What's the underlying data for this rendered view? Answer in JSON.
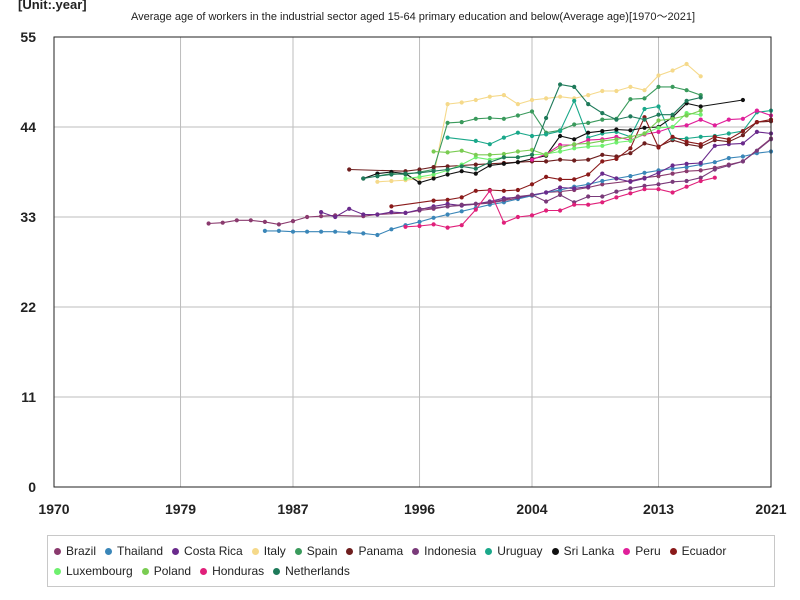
{
  "unit_label": "[Unit:.year]",
  "chart_data": {
    "type": "line",
    "title": "Average age of workers in the industrial sector aged 15-64 primary education and below(Average age)[1970～2021]",
    "xlabel": "",
    "ylabel": "",
    "xlim": [
      1970,
      2021
    ],
    "ylim": [
      0,
      55
    ],
    "x_ticks": [
      "1970",
      "1979",
      "1987",
      "1996",
      "2004",
      "2013",
      "2021"
    ],
    "y_ticks": [
      "0",
      "11",
      "22",
      "33",
      "44",
      "55"
    ],
    "grid": true,
    "legend_position": "bottom",
    "series": [
      {
        "name": "Brazil",
        "color": "#8a3a6e",
        "x": [
          1981,
          1982,
          1983,
          1984,
          1985,
          1986,
          1987,
          1988,
          1989,
          1990,
          1992,
          1993,
          1995,
          1996,
          1997,
          1998,
          1999,
          2001,
          2002,
          2003,
          2004,
          2005,
          2006,
          2007,
          2008,
          2009,
          2011,
          2012,
          2013,
          2014,
          2015,
          2016,
          2017,
          2018,
          2019,
          2021
        ],
        "y": [
          32.2,
          32.3,
          32.6,
          32.6,
          32.4,
          32.1,
          32.5,
          33.0,
          33.1,
          33.2,
          33.1,
          33.3,
          33.5,
          33.8,
          34.0,
          34.3,
          34.4,
          34.7,
          35.0,
          35.3,
          35.6,
          36.0,
          36.1,
          36.3,
          36.6,
          37.0,
          37.4,
          37.8,
          38.0,
          38.3,
          38.6,
          38.7,
          39.0,
          39.4,
          39.8,
          42.6
        ]
      },
      {
        "name": "Thailand",
        "color": "#3a86b8",
        "x": [
          1985,
          1986,
          1987,
          1988,
          1989,
          1990,
          1991,
          1992,
          1993,
          1994,
          1995,
          1996,
          1997,
          1998,
          1999,
          2000,
          2001,
          2002,
          2003,
          2004,
          2005,
          2006,
          2007,
          2008,
          2009,
          2010,
          2011,
          2012,
          2013,
          2014,
          2015,
          2016,
          2017,
          2018,
          2019,
          2020,
          2021
        ],
        "y": [
          31.3,
          31.3,
          31.2,
          31.2,
          31.2,
          31.2,
          31.1,
          31.0,
          30.8,
          31.5,
          32.0,
          32.4,
          32.9,
          33.3,
          33.7,
          34.1,
          34.5,
          34.8,
          35.2,
          35.6,
          36.0,
          36.3,
          36.7,
          37.0,
          37.4,
          37.7,
          38.0,
          38.4,
          38.7,
          38.9,
          39.1,
          39.4,
          39.7,
          40.2,
          40.4,
          40.8,
          41.0
        ]
      },
      {
        "name": "Costa Rica",
        "color": "#6a2a8c",
        "x": [
          1989,
          1990,
          1991,
          1992,
          1993,
          1994,
          1995,
          1996,
          1997,
          1998,
          1999,
          2000,
          2001,
          2002,
          2003,
          2004,
          2005,
          2006,
          2007,
          2008,
          2009,
          2010,
          2011,
          2012,
          2013,
          2014,
          2015,
          2016,
          2017,
          2018,
          2019,
          2020,
          2021
        ],
        "y": [
          33.6,
          33.0,
          34.0,
          33.3,
          33.3,
          33.6,
          33.5,
          33.9,
          34.3,
          34.6,
          34.4,
          34.6,
          34.9,
          35.3,
          35.4,
          35.7,
          36.0,
          36.6,
          36.5,
          36.7,
          38.3,
          37.7,
          37.3,
          37.7,
          38.4,
          39.3,
          39.5,
          39.6,
          41.7,
          41.9,
          42.0,
          43.4,
          43.2
        ]
      },
      {
        "name": "Italy",
        "color": "#f5d98a",
        "x": [
          1993,
          1994,
          1995,
          1996,
          1997,
          1998,
          1999,
          2000,
          2001,
          2002,
          2003,
          2004,
          2005,
          2006,
          2007,
          2008,
          2009,
          2010,
          2011,
          2012,
          2013,
          2014,
          2015,
          2016
        ],
        "y": [
          37.3,
          37.4,
          37.5,
          37.7,
          37.9,
          46.8,
          47.0,
          47.3,
          47.7,
          47.9,
          46.8,
          47.3,
          47.5,
          47.7,
          47.5,
          47.9,
          48.4,
          48.4,
          48.9,
          48.5,
          50.3,
          50.9,
          51.7,
          50.2
        ]
      },
      {
        "name": "Spain",
        "color": "#3a9a5c",
        "x": [
          1993,
          1994,
          1995,
          1996,
          1997,
          1998,
          1999,
          2000,
          2001,
          2002,
          2003,
          2004,
          2005,
          2006,
          2007,
          2008,
          2009,
          2010,
          2011,
          2012,
          2013,
          2014,
          2015,
          2016
        ],
        "y": [
          38.0,
          38.3,
          38.2,
          38.5,
          38.8,
          44.5,
          44.6,
          45.0,
          45.1,
          45.0,
          45.4,
          45.9,
          43.3,
          43.6,
          44.3,
          44.5,
          44.9,
          45.0,
          47.4,
          47.5,
          48.9,
          48.9,
          48.5,
          47.9
        ]
      },
      {
        "name": "Panama",
        "color": "#6e1e1e",
        "x": [
          1991,
          1995,
          1996,
          1997,
          1998,
          1999,
          2000,
          2001,
          2002,
          2003,
          2004,
          2005,
          2006,
          2007,
          2008,
          2009,
          2010,
          2011,
          2012,
          2013,
          2014,
          2015,
          2016,
          2017,
          2018,
          2019,
          2020,
          2021
        ],
        "y": [
          38.8,
          38.6,
          38.8,
          39.1,
          39.2,
          39.3,
          39.4,
          39.5,
          39.6,
          39.7,
          39.8,
          39.8,
          40.0,
          39.9,
          40.0,
          40.6,
          40.4,
          40.8,
          42.0,
          41.6,
          42.4,
          41.9,
          41.6,
          42.4,
          42.2,
          43.0,
          44.6,
          44.7
        ]
      },
      {
        "name": "Indonesia",
        "color": "#7a3a7a",
        "x": [
          1996,
          1997,
          1998,
          1999,
          2000,
          2001,
          2002,
          2003,
          2004,
          2005,
          2006,
          2007,
          2008,
          2009,
          2010,
          2011,
          2012,
          2013,
          2014,
          2015,
          2016,
          2017,
          2018,
          2019,
          2020,
          2021
        ],
        "y": [
          34.0,
          34.1,
          34.3,
          34.5,
          34.6,
          34.8,
          35.1,
          35.5,
          35.7,
          34.9,
          35.7,
          34.8,
          35.5,
          35.5,
          36.1,
          36.5,
          36.8,
          37.0,
          37.3,
          37.4,
          37.8,
          38.8,
          39.3,
          39.8,
          41.1,
          42.5
        ]
      },
      {
        "name": "Uruguay",
        "color": "#1aa88a",
        "x": [
          1998,
          2000,
          2001,
          2002,
          2003,
          2004,
          2005,
          2006,
          2007,
          2008,
          2009,
          2010,
          2011,
          2012,
          2013,
          2014,
          2015,
          2016,
          2017,
          2018,
          2019,
          2020,
          2021
        ],
        "y": [
          42.7,
          42.3,
          41.9,
          42.7,
          43.3,
          42.9,
          43.1,
          43.5,
          47.2,
          42.7,
          43.2,
          43.4,
          42.8,
          46.2,
          46.5,
          42.6,
          42.6,
          42.8,
          42.9,
          43.2,
          43.5,
          45.8,
          46.0
        ]
      },
      {
        "name": "Sri Lanka",
        "color": "#111111",
        "x": [
          1992,
          1993,
          1994,
          1995,
          1996,
          1997,
          1998,
          1999,
          2000,
          2001,
          2002,
          2003,
          2004,
          2005,
          2006,
          2007,
          2008,
          2009,
          2010,
          2011,
          2012,
          2013,
          2014,
          2015,
          2016,
          2019
        ],
        "y": [
          37.7,
          38.3,
          38.5,
          38.3,
          37.2,
          37.7,
          38.2,
          38.6,
          38.3,
          39.3,
          39.5,
          39.7,
          40.1,
          40.5,
          42.9,
          42.5,
          43.3,
          43.5,
          43.7,
          43.6,
          43.9,
          44.0,
          45.2,
          46.9,
          46.5,
          47.3
        ]
      },
      {
        "name": "Peru",
        "color": "#e0209a",
        "x": [
          2004,
          2005,
          2006,
          2007,
          2008,
          2009,
          2010,
          2011,
          2012,
          2013,
          2014,
          2015,
          2016,
          2017,
          2018,
          2019,
          2020,
          2021
        ],
        "y": [
          40.0,
          40.7,
          41.8,
          41.8,
          42.4,
          42.5,
          42.8,
          42.4,
          43.1,
          43.4,
          44.0,
          44.2,
          44.9,
          44.2,
          44.9,
          45.0,
          46.0,
          45.4
        ]
      },
      {
        "name": "Ecuador",
        "color": "#8a1a1a",
        "x": [
          1994,
          1997,
          1998,
          1999,
          2000,
          2001,
          2002,
          2003,
          2004,
          2005,
          2006,
          2007,
          2008,
          2009,
          2010,
          2011,
          2012,
          2013,
          2014,
          2015,
          2016,
          2017,
          2018,
          2019,
          2020,
          2021
        ],
        "y": [
          34.3,
          35.0,
          35.1,
          35.4,
          36.2,
          36.3,
          36.2,
          36.3,
          37.0,
          37.9,
          37.6,
          37.6,
          38.2,
          39.8,
          40.1,
          41.4,
          45.2,
          41.5,
          42.8,
          42.2,
          41.9,
          42.8,
          42.5,
          43.5,
          44.6,
          44.9
        ]
      },
      {
        "name": "Luxembourg",
        "color": "#6ef06e",
        "x": [
          1995,
          1996,
          1997,
          1998,
          1999,
          2000,
          2001,
          2002,
          2003,
          2004,
          2005,
          2006,
          2007,
          2008,
          2009,
          2010,
          2011,
          2012,
          2013,
          2014,
          2015,
          2016
        ],
        "y": [
          37.7,
          37.9,
          38.2,
          38.7,
          39.4,
          40.3,
          40.0,
          40.3,
          40.3,
          40.6,
          40.7,
          41.0,
          41.4,
          41.6,
          41.7,
          42.1,
          42.3,
          43.2,
          43.9,
          44.0,
          45.7,
          45.5
        ]
      },
      {
        "name": "Poland",
        "color": "#7acc52",
        "x": [
          1997,
          1998,
          1999,
          2000,
          2001,
          2002,
          2003,
          2004,
          2005,
          2006,
          2007,
          2008,
          2009,
          2010,
          2011,
          2012,
          2013,
          2014,
          2015,
          2016
        ],
        "y": [
          41.0,
          40.9,
          41.1,
          40.6,
          40.6,
          40.7,
          41.0,
          41.2,
          40.6,
          41.5,
          41.9,
          42.0,
          42.3,
          42.5,
          42.8,
          43.2,
          44.8,
          45.0,
          45.4,
          46.0
        ]
      },
      {
        "name": "Honduras",
        "color": "#e0207a",
        "x": [
          1995,
          1996,
          1997,
          1998,
          1999,
          2000,
          2001,
          2002,
          2003,
          2004,
          2005,
          2006,
          2007,
          2008,
          2009,
          2010,
          2011,
          2012,
          2013,
          2014,
          2015,
          2016,
          2017
        ],
        "y": [
          31.8,
          31.9,
          32.1,
          31.7,
          32.0,
          33.9,
          36.2,
          32.3,
          33.0,
          33.2,
          33.8,
          33.8,
          34.5,
          34.5,
          34.8,
          35.4,
          35.9,
          36.4,
          36.4,
          36.0,
          36.7,
          37.4,
          37.8
        ]
      },
      {
        "name": "Netherlands",
        "color": "#1e7a5a",
        "x": [
          1992,
          1993,
          1994,
          1995,
          1996,
          1997,
          1998,
          1999,
          2000,
          2001,
          2002,
          2003,
          2004,
          2005,
          2006,
          2007,
          2008,
          2009,
          2010,
          2011,
          2012,
          2013,
          2014,
          2015,
          2016
        ],
        "y": [
          37.7,
          38.0,
          38.2,
          38.3,
          38.4,
          38.6,
          38.8,
          39.2,
          38.9,
          39.7,
          40.3,
          40.3,
          40.6,
          45.1,
          49.2,
          48.9,
          46.8,
          45.7,
          44.9,
          45.3,
          44.9,
          45.5,
          45.5,
          47.2,
          47.6
        ]
      }
    ]
  }
}
